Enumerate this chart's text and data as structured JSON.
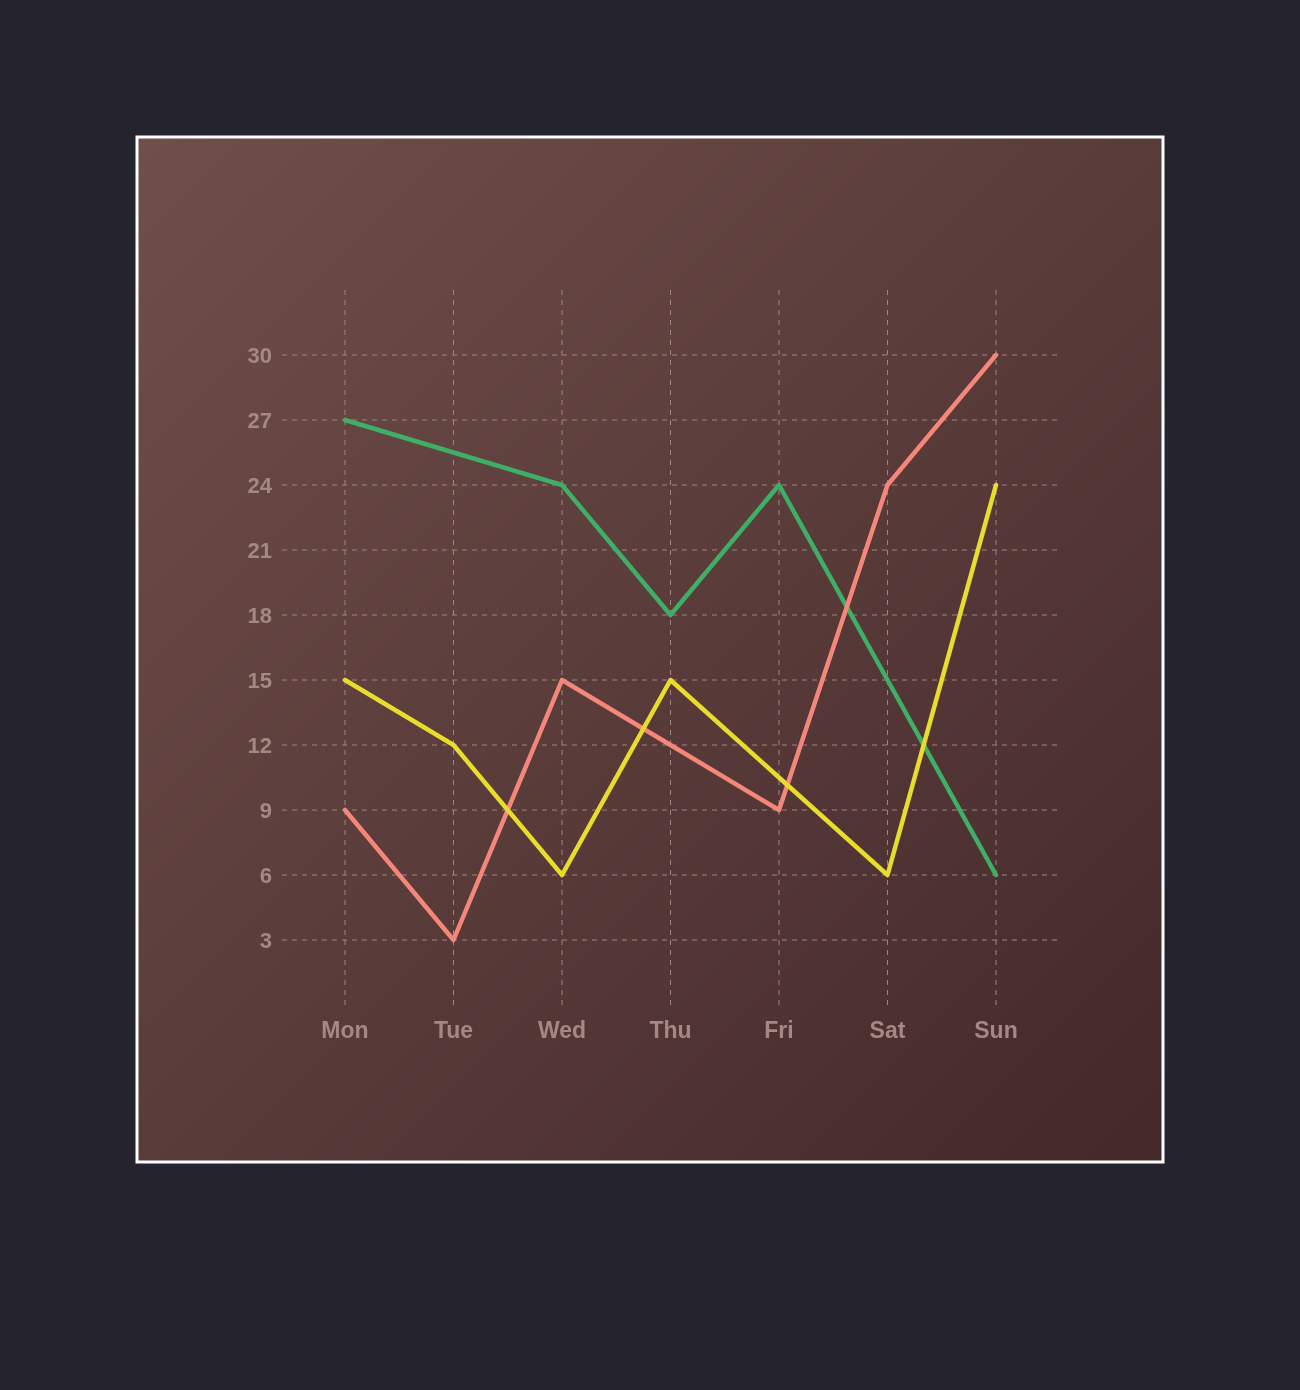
{
  "chart_data": {
    "type": "line",
    "categories": [
      "Mon",
      "Tue",
      "Wed",
      "Thu",
      "Fri",
      "Sat",
      "Sun"
    ],
    "series": [
      {
        "color": "#3fae67",
        "values": [
          27,
          25.5,
          24,
          18,
          24,
          15,
          6
        ]
      },
      {
        "color": "#f4877a",
        "values": [
          9,
          3,
          15,
          12,
          9,
          24,
          30
        ]
      },
      {
        "color": "#e8dc2c",
        "values": [
          15,
          12,
          6,
          15,
          10.5,
          6,
          24
        ]
      }
    ],
    "ylim": [
      0,
      33
    ],
    "yticks": [
      3,
      6,
      9,
      12,
      15,
      18,
      21,
      24,
      27,
      30
    ],
    "grid": true,
    "line_style": "solid",
    "marker": "none"
  }
}
